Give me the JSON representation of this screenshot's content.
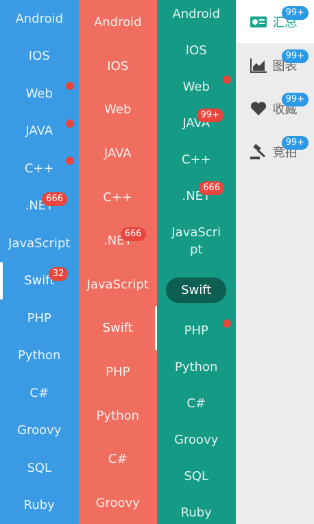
{
  "columns": [
    {
      "color": "#3a9be4",
      "items": [
        {
          "label": "Android"
        },
        {
          "label": "IOS"
        },
        {
          "label": "Web",
          "dot": true
        },
        {
          "label": "JAVA",
          "dot": true
        },
        {
          "label": "C++",
          "dot": true
        },
        {
          "label": ".NET",
          "badge": "666"
        },
        {
          "label": "JavaScript"
        },
        {
          "label": "Swift",
          "badge": "32",
          "selected": true
        },
        {
          "label": "PHP"
        },
        {
          "label": "Python"
        },
        {
          "label": "C#"
        },
        {
          "label": "Groovy"
        },
        {
          "label": "SQL"
        },
        {
          "label": "Ruby"
        }
      ]
    },
    {
      "color": "#ef6e5f",
      "items": [
        {
          "label": "Android"
        },
        {
          "label": "IOS"
        },
        {
          "label": "Web"
        },
        {
          "label": "JAVA"
        },
        {
          "label": "C++"
        },
        {
          "label": ".NET",
          "badge": "666"
        },
        {
          "label": "JavaScript"
        },
        {
          "label": "Swift",
          "selected": true
        },
        {
          "label": "PHP"
        },
        {
          "label": "Python"
        },
        {
          "label": "C#"
        },
        {
          "label": "Groovy"
        }
      ]
    },
    {
      "color": "#159a85",
      "items": [
        {
          "label": "Android"
        },
        {
          "label": "IOS"
        },
        {
          "label": "Web",
          "dot": true
        },
        {
          "label": "JAVA",
          "badge": "99+"
        },
        {
          "label": "C++"
        },
        {
          "label": ".NET",
          "badge": "666"
        },
        {
          "label": "JavaScript"
        },
        {
          "label": "Swift",
          "selected": true
        },
        {
          "label": "PHP",
          "dot": true
        },
        {
          "label": "Python"
        },
        {
          "label": "C#"
        },
        {
          "label": "Groovy"
        },
        {
          "label": "SQL"
        },
        {
          "label": "Ruby"
        }
      ]
    }
  ],
  "sidebar": {
    "color": "#ececec",
    "items": [
      {
        "label": "汇总",
        "badge": "99+",
        "selected": true
      },
      {
        "label": "图表",
        "badge": "99+"
      },
      {
        "label": "收藏",
        "badge": "99+"
      },
      {
        "label": "竞拍",
        "badge": "99+"
      }
    ]
  }
}
